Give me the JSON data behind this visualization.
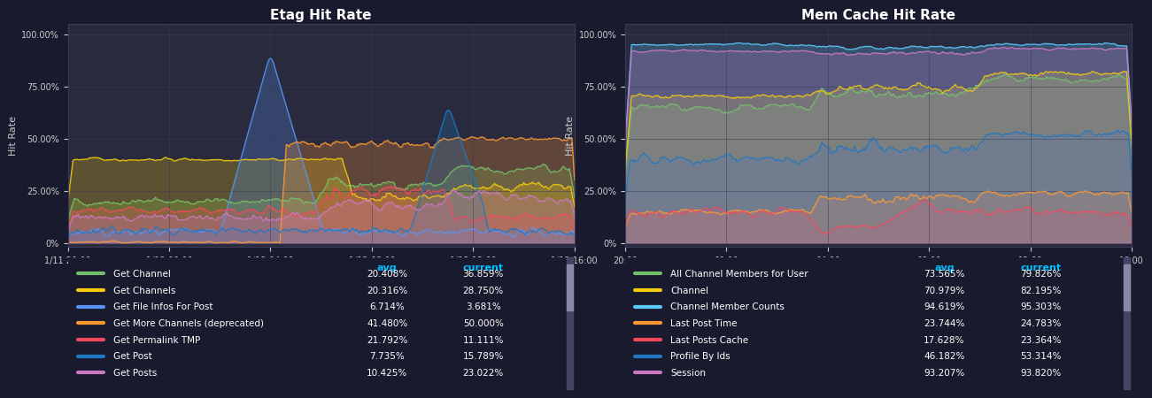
{
  "bg_color": "#1a1a2e",
  "plot_bg": "#2a2a3e",
  "grid_color": "#3a3a5a",
  "text_color": "#ffffff",
  "label_color": "#cccccc",
  "cyan_header": "#00bfff",
  "left_title": "Etag Hit Rate",
  "right_title": "Mem Cache Hit Rate",
  "ylabel": "Hit Rate",
  "ytick_labels": [
    "0%",
    "25.00%",
    "50.00%",
    "75.00%",
    "100.00%"
  ],
  "ytick_vals": [
    0,
    25,
    50,
    75,
    100
  ],
  "left_xticks": [
    "1/11 20:00",
    "1/12 00:00",
    "1/12 04:00",
    "1/12 08:00",
    "1/12 12:00",
    "1/12 16:00"
  ],
  "right_xticks": [
    "20:00",
    "00:00",
    "04:00",
    "08:00",
    "12:00",
    "16:00"
  ],
  "left_legend": [
    {
      "label": "Get Channel",
      "color": "#73bf69",
      "avg": "20.408%",
      "current": "36.859%"
    },
    {
      "label": "Get Channels",
      "color": "#f2cc0c",
      "avg": "20.316%",
      "current": "28.750%"
    },
    {
      "label": "Get File Infos For Post",
      "color": "#5794f2",
      "avg": "6.714%",
      "current": "3.681%"
    },
    {
      "label": "Get More Channels (deprecated)",
      "color": "#ff9830",
      "avg": "41.480%",
      "current": "50.000%"
    },
    {
      "label": "Get Permalink TMP",
      "color": "#f2495c",
      "avg": "21.792%",
      "current": "11.111%"
    },
    {
      "label": "Get Post",
      "color": "#1f78c1",
      "avg": "7.735%",
      "current": "15.789%"
    },
    {
      "label": "Get Posts",
      "color": "#cc78c1",
      "avg": "10.425%",
      "current": "23.022%"
    }
  ],
  "right_legend": [
    {
      "label": "All Channel Members for User",
      "color": "#73bf69",
      "avg": "73.565%",
      "current": "79.826%"
    },
    {
      "label": "Channel",
      "color": "#f2cc0c",
      "avg": "70.979%",
      "current": "82.195%"
    },
    {
      "label": "Channel Member Counts",
      "color": "#5ac8fa",
      "avg": "94.619%",
      "current": "95.303%"
    },
    {
      "label": "Last Post Time",
      "color": "#ff9830",
      "avg": "23.744%",
      "current": "24.783%"
    },
    {
      "label": "Last Posts Cache",
      "color": "#f2495c",
      "avg": "17.628%",
      "current": "23.364%"
    },
    {
      "label": "Profile By Ids",
      "color": "#1f78c1",
      "avg": "46.182%",
      "current": "53.314%"
    },
    {
      "label": "Session",
      "color": "#cc78c1",
      "avg": "93.207%",
      "current": "93.820%"
    }
  ]
}
